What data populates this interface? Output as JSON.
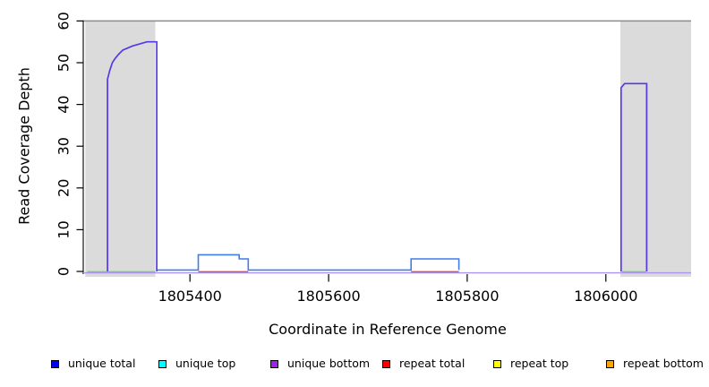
{
  "chart_data": {
    "type": "line",
    "subtype": "step-coverage",
    "title": "",
    "xlabel": "Coordinate in Reference Genome",
    "ylabel": "Read Coverage Depth",
    "xlim": [
      1805246,
      1806123
    ],
    "ylim": [
      0,
      60
    ],
    "x_ticks": [
      1805400,
      1805600,
      1805800,
      1806000
    ],
    "y_ticks": [
      0,
      10,
      20,
      30,
      40,
      50,
      60
    ],
    "grid": false,
    "legend_position": "bottom",
    "cap_line": {
      "y": 60,
      "color": "#8c8c8c"
    },
    "shaded_regions": {
      "color": "#dbdbdb",
      "ranges": [
        [
          1805249,
          1805350
        ],
        [
          1806021,
          1806123
        ]
      ]
    },
    "series": [
      {
        "name": "unique bottom baseline",
        "color": "#ab93f3",
        "width": 1.4,
        "segments": [
          [
            [
              1805246,
              0
            ],
            [
              1806123,
              0
            ]
          ]
        ]
      },
      {
        "name": "covered underlay green",
        "color": "#7cc87a",
        "width": 1.4,
        "segments": [
          [
            [
              1805252,
              0
            ],
            [
              1805350,
              0
            ]
          ],
          [
            [
              1806023,
              0
            ],
            [
              1806058,
              0
            ]
          ]
        ]
      },
      {
        "name": "repeat total",
        "color": "#e8484f",
        "width": 1.3,
        "segments": [
          [
            [
              1805412,
              0
            ],
            [
              1805484,
              0
            ]
          ],
          [
            [
              1805719,
              0
            ],
            [
              1805788,
              0
            ]
          ]
        ]
      },
      {
        "name": "unique total",
        "color": "#3f7cf0",
        "width": 1.6,
        "segments": [
          [
            [
              1805352,
              0
            ],
            [
              1805412,
              0
            ],
            [
              1805412,
              4
            ],
            [
              1805471,
              4
            ],
            [
              1805471,
              3
            ],
            [
              1805484,
              3
            ],
            [
              1805484,
              0
            ],
            [
              1805719,
              0
            ],
            [
              1805719,
              3
            ],
            [
              1805788,
              3
            ],
            [
              1805788,
              0
            ]
          ]
        ]
      },
      {
        "name": "unique total plus bottom peaks",
        "color": "#5639e6",
        "width": 1.7,
        "segments": [
          [
            [
              1805281,
              0
            ],
            [
              1805281,
              46
            ],
            [
              1805284,
              48
            ],
            [
              1805288,
              50
            ],
            [
              1805292,
              51
            ],
            [
              1805297,
              52
            ],
            [
              1805303,
              53
            ],
            [
              1805317,
              54
            ],
            [
              1805338,
              55
            ],
            [
              1805352,
              55
            ],
            [
              1805352,
              0
            ]
          ],
          [
            [
              1806022,
              0
            ],
            [
              1806022,
              44
            ],
            [
              1806027,
              45
            ],
            [
              1806059,
              45
            ],
            [
              1806059,
              0
            ]
          ]
        ]
      }
    ],
    "legend": [
      {
        "label": "unique total",
        "color": "#0000FF"
      },
      {
        "label": "unique top",
        "color": "#00FFFF"
      },
      {
        "label": "unique bottom",
        "color": "#A020F0"
      },
      {
        "label": "repeat total",
        "color": "#FF0000"
      },
      {
        "label": "repeat top",
        "color": "#FFFF00"
      },
      {
        "label": "repeat bottom",
        "color": "#FFA500"
      }
    ]
  }
}
